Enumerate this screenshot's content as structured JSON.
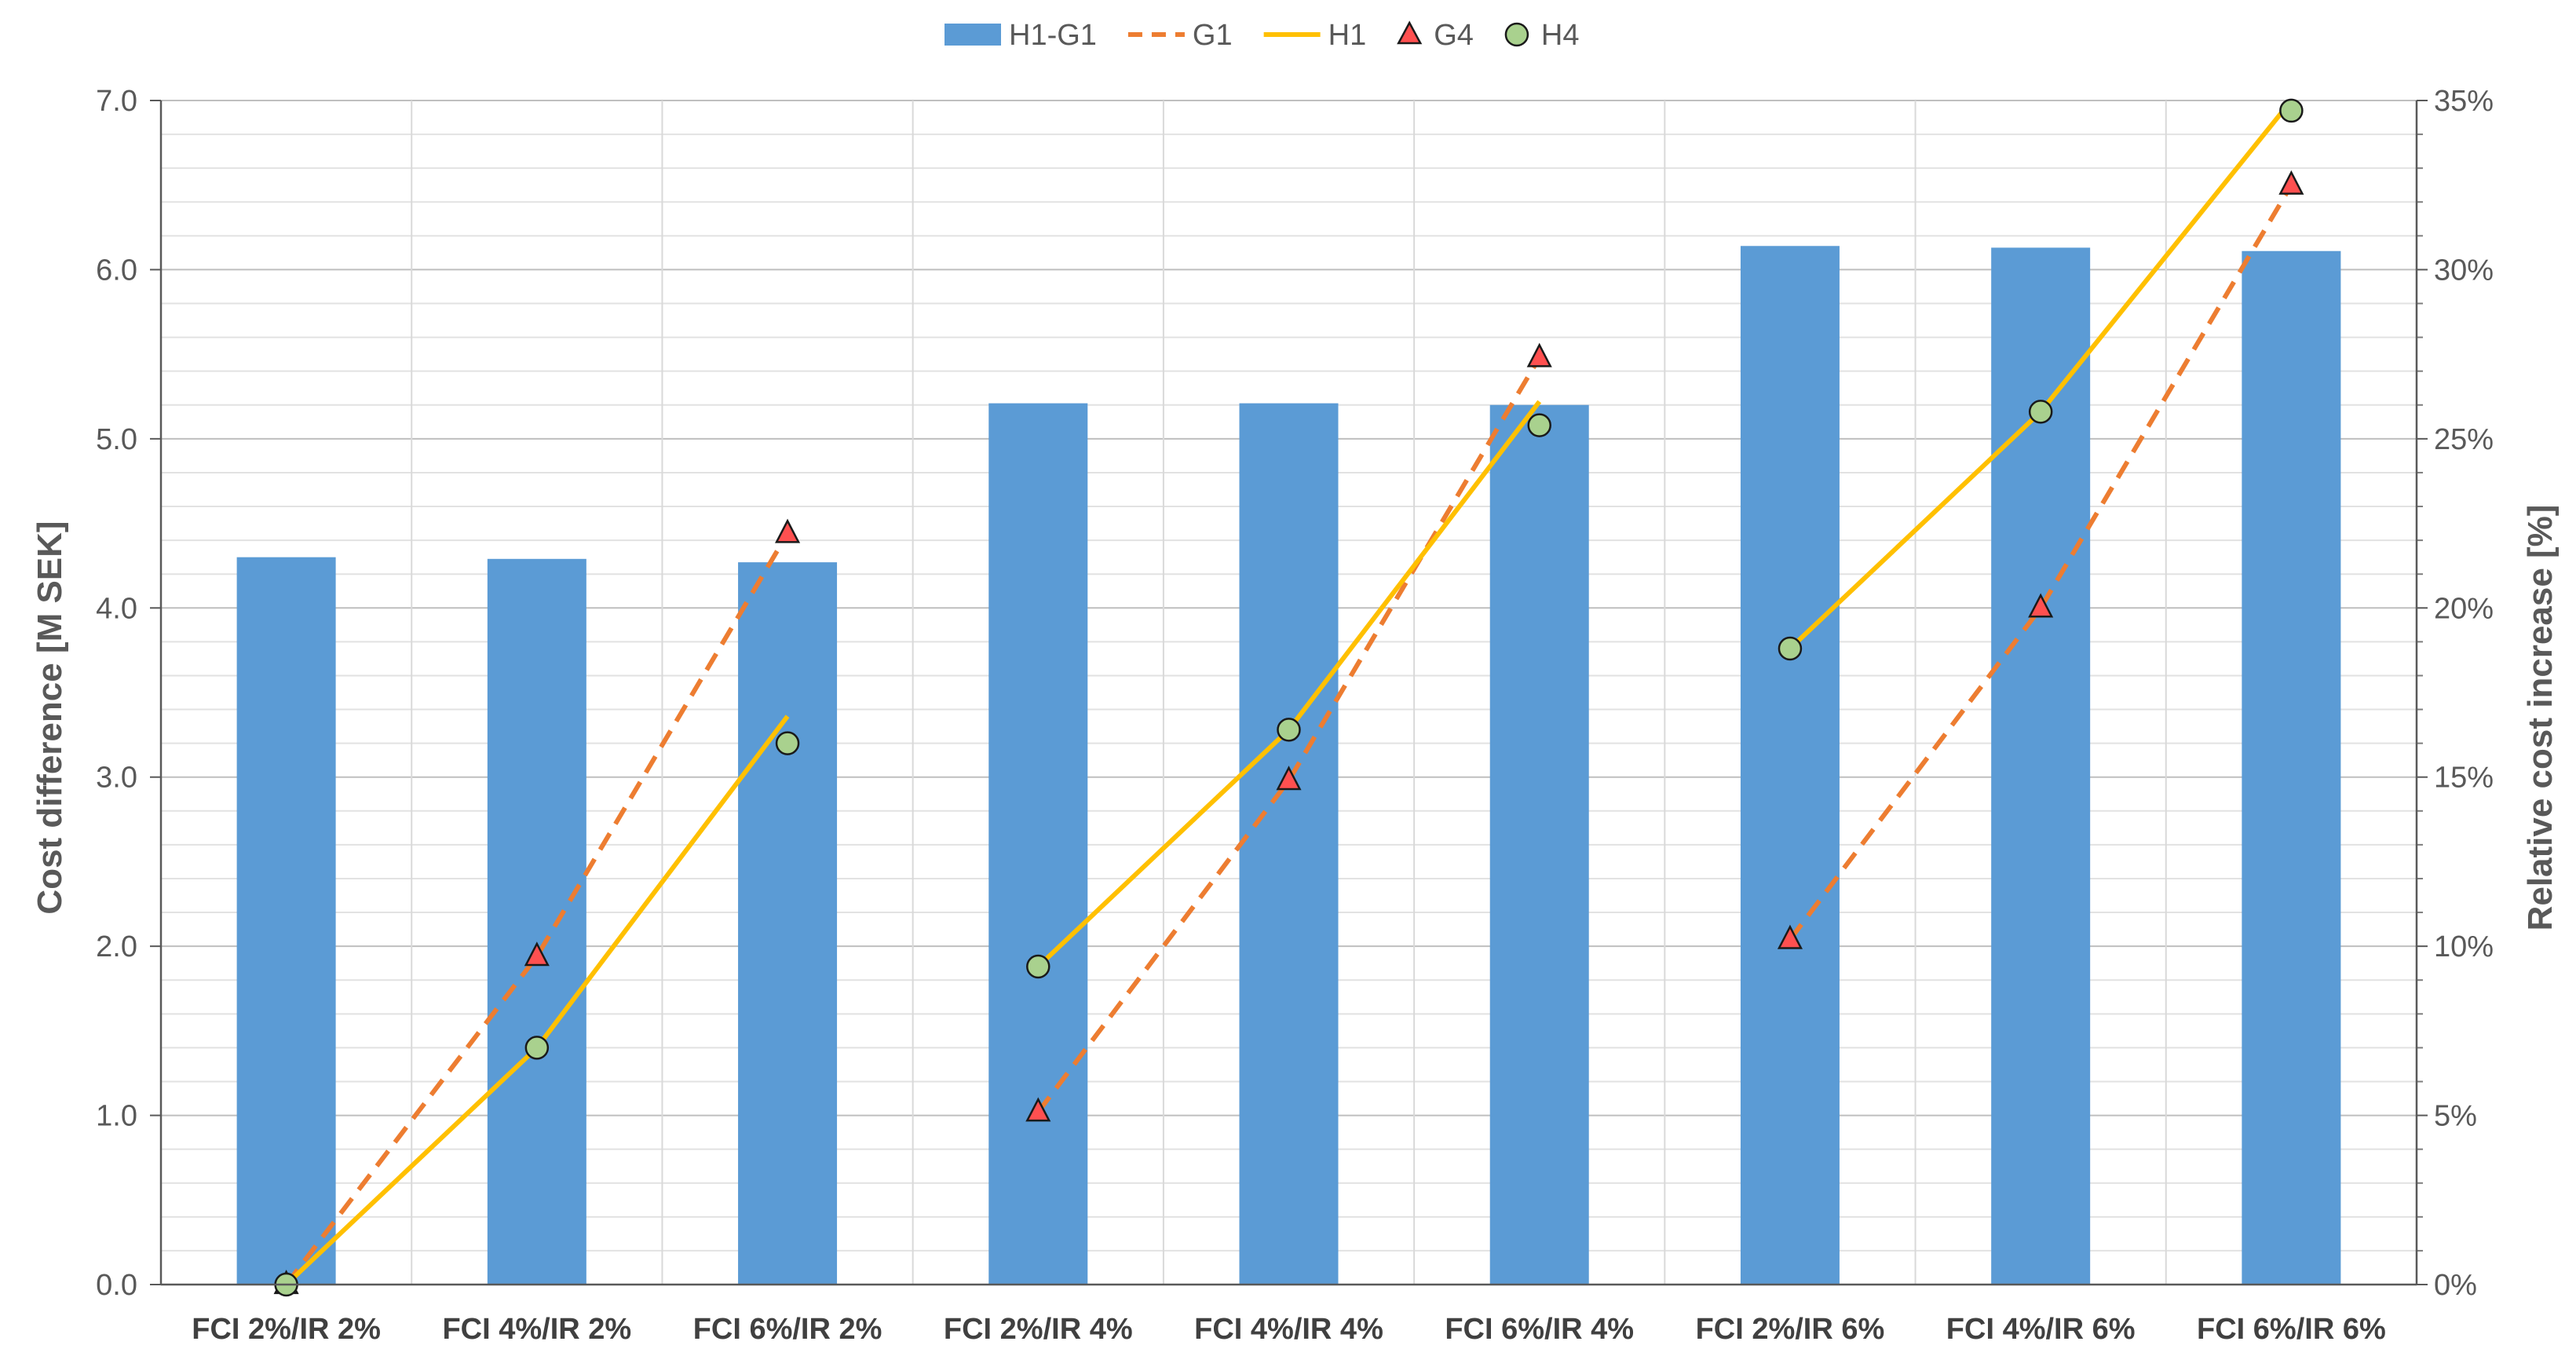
{
  "chart_data": {
    "type": "bar",
    "categories": [
      "FCI 2%/IR 2%",
      "FCI 4%/IR 2%",
      "FCI 6%/IR 2%",
      "FCI 2%/IR 4%",
      "FCI 4%/IR 4%",
      "FCI 6%/IR 4%",
      "FCI 2%/IR 6%",
      "FCI 4%/IR 6%",
      "FCI 6%/IR 6%"
    ],
    "ylabel": "Cost difference [M SEK]",
    "y2label": "Relative cost increase [%]",
    "ylim": [
      0,
      7
    ],
    "y2lim": [
      0,
      35
    ],
    "yticks": [
      "0.0",
      "1.0",
      "2.0",
      "3.0",
      "4.0",
      "5.0",
      "6.0",
      "7.0"
    ],
    "y2ticks": [
      "0%",
      "5%",
      "10%",
      "15%",
      "20%",
      "25%",
      "30%",
      "35%"
    ],
    "grid": true,
    "legend_position": "top",
    "series": [
      {
        "name": "H1-G1",
        "type": "bar",
        "axis": "left",
        "color": "#5b9bd5",
        "values": [
          4.3,
          4.29,
          4.27,
          5.21,
          5.21,
          5.2,
          6.14,
          6.13,
          6.11
        ]
      },
      {
        "name": "G1",
        "type": "line",
        "style": "dashed",
        "axis": "right",
        "color": "#ed7d31",
        "values": [
          0.0,
          9.7,
          22.2,
          5.1,
          14.9,
          27.4,
          10.2,
          20.0,
          32.5
        ]
      },
      {
        "name": "H1",
        "type": "line",
        "style": "solid",
        "axis": "right",
        "color": "#ffc000",
        "values": [
          0.0,
          7.0,
          16.8,
          9.4,
          16.4,
          26.1,
          18.8,
          25.8,
          35.0
        ]
      },
      {
        "name": "G4",
        "type": "scatter",
        "marker": "triangle",
        "axis": "right",
        "color": "#ff5050",
        "values": [
          0.0,
          9.7,
          22.2,
          5.1,
          14.9,
          27.4,
          10.2,
          20.0,
          32.5
        ]
      },
      {
        "name": "H4",
        "type": "scatter",
        "marker": "circle",
        "axis": "right",
        "color": "#a9d18e",
        "values": [
          0.0,
          7.0,
          16.0,
          9.4,
          16.4,
          25.4,
          18.8,
          25.8,
          34.7
        ]
      }
    ],
    "line_segments": [
      [
        0,
        1,
        2
      ],
      [
        3,
        4,
        5
      ],
      [
        6,
        7,
        8
      ]
    ]
  }
}
